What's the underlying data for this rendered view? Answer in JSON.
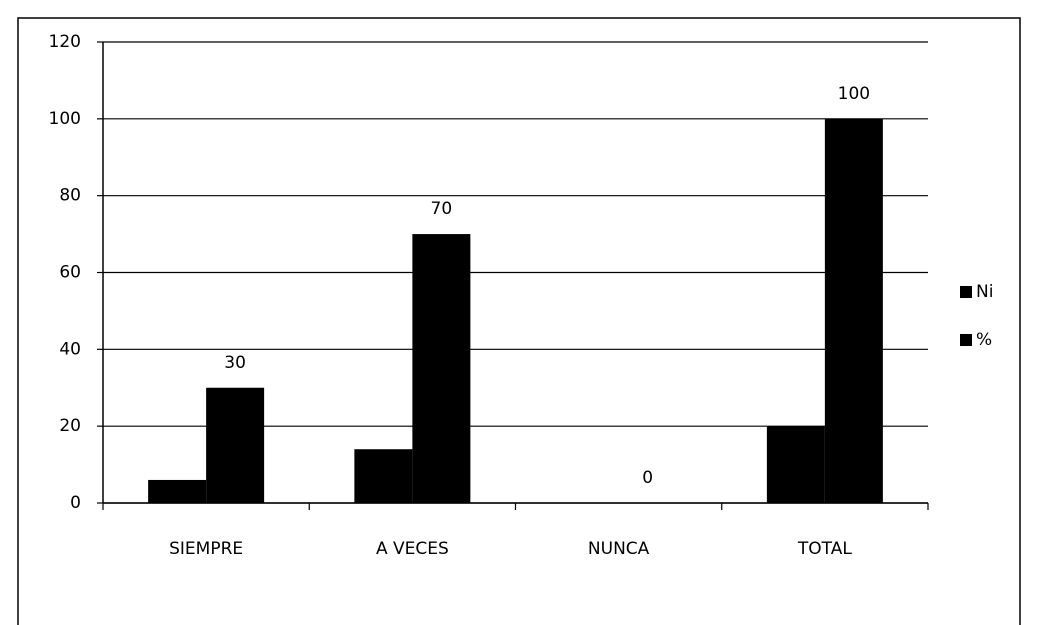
{
  "chart_data": {
    "type": "bar",
    "categories": [
      "SIEMPRE",
      "A VECES",
      "NUNCA",
      "TOTAL"
    ],
    "series": [
      {
        "name": "Ni",
        "color": "#000000",
        "values": [
          6,
          14,
          0,
          20
        ]
      },
      {
        "name": "%",
        "color": "#000000",
        "values": [
          30,
          70,
          0,
          100
        ],
        "data_labels": true
      }
    ],
    "ylim": [
      0,
      120
    ],
    "yticks": [
      0,
      20,
      40,
      60,
      80,
      100,
      120
    ],
    "grid": true,
    "legend": "right"
  }
}
